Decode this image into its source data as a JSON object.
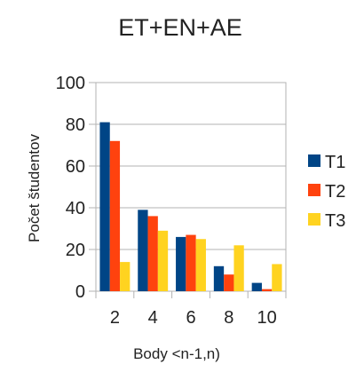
{
  "chart_data": {
    "type": "bar",
    "title": "ET+EN+AE",
    "xlabel": "Body <n-1,n)",
    "ylabel": "Počet študentov",
    "categories": [
      "2",
      "4",
      "6",
      "8",
      "10"
    ],
    "series": [
      {
        "name": "T1",
        "color": "#004586",
        "values": [
          81,
          39,
          26,
          12,
          4
        ]
      },
      {
        "name": "T2",
        "color": "#ff420e",
        "values": [
          72,
          36,
          27,
          8,
          1
        ]
      },
      {
        "name": "T3",
        "color": "#ffd320",
        "values": [
          14,
          29,
          25,
          22,
          13
        ]
      }
    ],
    "ylim": [
      0,
      100
    ],
    "yticks": [
      "0",
      "20",
      "40",
      "60",
      "80",
      "100"
    ],
    "grid": "horizontal",
    "legend": "right"
  }
}
